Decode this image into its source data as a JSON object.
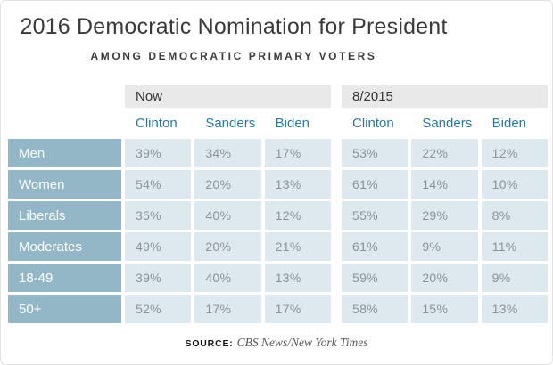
{
  "header": {
    "title": "2016 Democratic Nomination for President",
    "subtitle": "AMONG DEMOCRATIC PRIMARY VOTERS"
  },
  "chart_data": {
    "type": "table",
    "title": "2016 Democratic Nomination for President",
    "subtitle": "Among Democratic primary voters",
    "column_groups": [
      {
        "label": "Now",
        "span": 3
      },
      {
        "label": "8/2015",
        "span": 3
      }
    ],
    "columns": [
      "Clinton",
      "Sanders",
      "Biden",
      "Clinton",
      "Sanders",
      "Biden"
    ],
    "rows": [
      {
        "label": "Men",
        "values": [
          "39%",
          "34%",
          "17%",
          "53%",
          "22%",
          "12%"
        ]
      },
      {
        "label": "Women",
        "values": [
          "54%",
          "20%",
          "13%",
          "61%",
          "14%",
          "10%"
        ]
      },
      {
        "label": "Liberals",
        "values": [
          "35%",
          "40%",
          "12%",
          "55%",
          "29%",
          "8%"
        ]
      },
      {
        "label": "Moderates",
        "values": [
          "49%",
          "20%",
          "21%",
          "61%",
          "9%",
          "11%"
        ]
      },
      {
        "label": "18-49",
        "values": [
          "39%",
          "40%",
          "13%",
          "59%",
          "20%",
          "9%"
        ]
      },
      {
        "label": "50+",
        "values": [
          "52%",
          "17%",
          "17%",
          "58%",
          "15%",
          "13%"
        ]
      }
    ]
  },
  "footer": {
    "source_label": "SOURCE:",
    "source_text": "CBS News/New York Times"
  },
  "colors": {
    "row_label_bg": "#93b7c7",
    "data_cell_bg": "#dde9ee",
    "group_band_bg": "#e9e9e9",
    "column_header_text": "#26789e",
    "data_text": "#8a9298",
    "title_text": "#3a3a3a"
  }
}
